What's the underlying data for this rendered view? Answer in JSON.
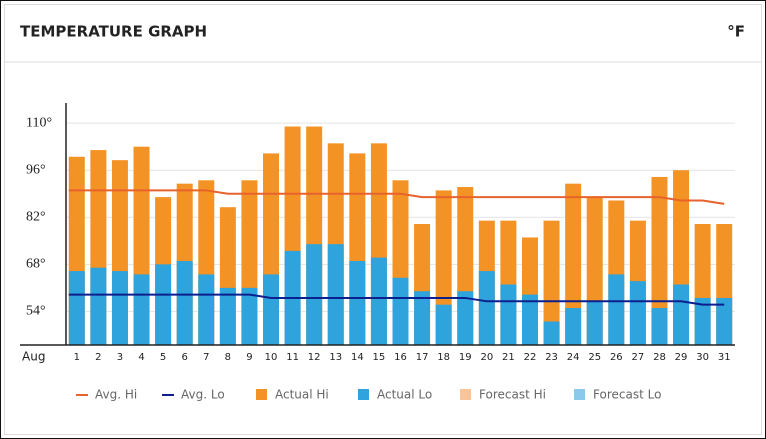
{
  "header": {
    "title": "TEMPERATURE GRAPH",
    "unit": "°F"
  },
  "chart_data": {
    "type": "bar",
    "x_label": "Aug",
    "categories": [
      "1",
      "2",
      "3",
      "4",
      "5",
      "6",
      "7",
      "8",
      "9",
      "10",
      "11",
      "12",
      "13",
      "14",
      "15",
      "16",
      "17",
      "18",
      "19",
      "20",
      "21",
      "22",
      "23",
      "24",
      "25",
      "26",
      "27",
      "28",
      "29",
      "30",
      "31"
    ],
    "ylim": [
      44,
      116
    ],
    "yticks": [
      {
        "value": 54,
        "label": "54°"
      },
      {
        "value": 68,
        "label": "68°"
      },
      {
        "value": 82,
        "label": "82°"
      },
      {
        "value": 96,
        "label": "96°"
      },
      {
        "value": 110,
        "label": "110°"
      }
    ],
    "grid": true,
    "series": [
      {
        "name": "Avg. Hi",
        "marker": "line",
        "color": "#e8622c",
        "values": [
          90,
          90,
          90,
          90,
          90,
          90,
          90,
          89,
          89,
          89,
          89,
          89,
          89,
          89,
          89,
          89,
          88,
          88,
          88,
          88,
          88,
          88,
          88,
          88,
          88,
          88,
          88,
          88,
          87,
          87,
          86
        ]
      },
      {
        "name": "Avg. Lo",
        "marker": "line",
        "color": "#0b1f8f",
        "values": [
          59,
          59,
          59,
          59,
          59,
          59,
          59,
          59,
          59,
          58,
          58,
          58,
          58,
          58,
          58,
          58,
          58,
          58,
          58,
          57,
          57,
          57,
          57,
          57,
          57,
          57,
          57,
          57,
          57,
          56,
          56
        ]
      },
      {
        "name": "Actual Hi",
        "marker": "bar",
        "color": "#f39325",
        "values": [
          100,
          102,
          99,
          103,
          88,
          92,
          93,
          85,
          93,
          101,
          109,
          109,
          104,
          101,
          104,
          93,
          80,
          90,
          91,
          81,
          81,
          76,
          81,
          92,
          88,
          87,
          81,
          94,
          96,
          80,
          80
        ]
      },
      {
        "name": "Actual Lo",
        "marker": "bar",
        "color": "#2fa3dc",
        "values": [
          66,
          67,
          66,
          65,
          68,
          69,
          65,
          61,
          61,
          65,
          72,
          74,
          74,
          69,
          70,
          64,
          60,
          56,
          60,
          66,
          62,
          59,
          51,
          55,
          57,
          65,
          63,
          55,
          62,
          58,
          58
        ]
      },
      {
        "name": "Forecast Hi",
        "marker": "bar",
        "color": "#f9c49a",
        "values": [
          null,
          null,
          null,
          null,
          null,
          null,
          null,
          null,
          null,
          null,
          null,
          null,
          null,
          null,
          null,
          null,
          null,
          null,
          null,
          null,
          null,
          null,
          null,
          null,
          null,
          null,
          null,
          null,
          null,
          null,
          null
        ]
      },
      {
        "name": "Forecast Lo",
        "marker": "bar",
        "color": "#8cc8ea",
        "values": [
          null,
          null,
          null,
          null,
          null,
          null,
          null,
          null,
          null,
          null,
          null,
          null,
          null,
          null,
          null,
          null,
          null,
          null,
          null,
          null,
          null,
          null,
          null,
          null,
          null,
          null,
          null,
          null,
          null,
          null,
          null
        ]
      }
    ]
  }
}
